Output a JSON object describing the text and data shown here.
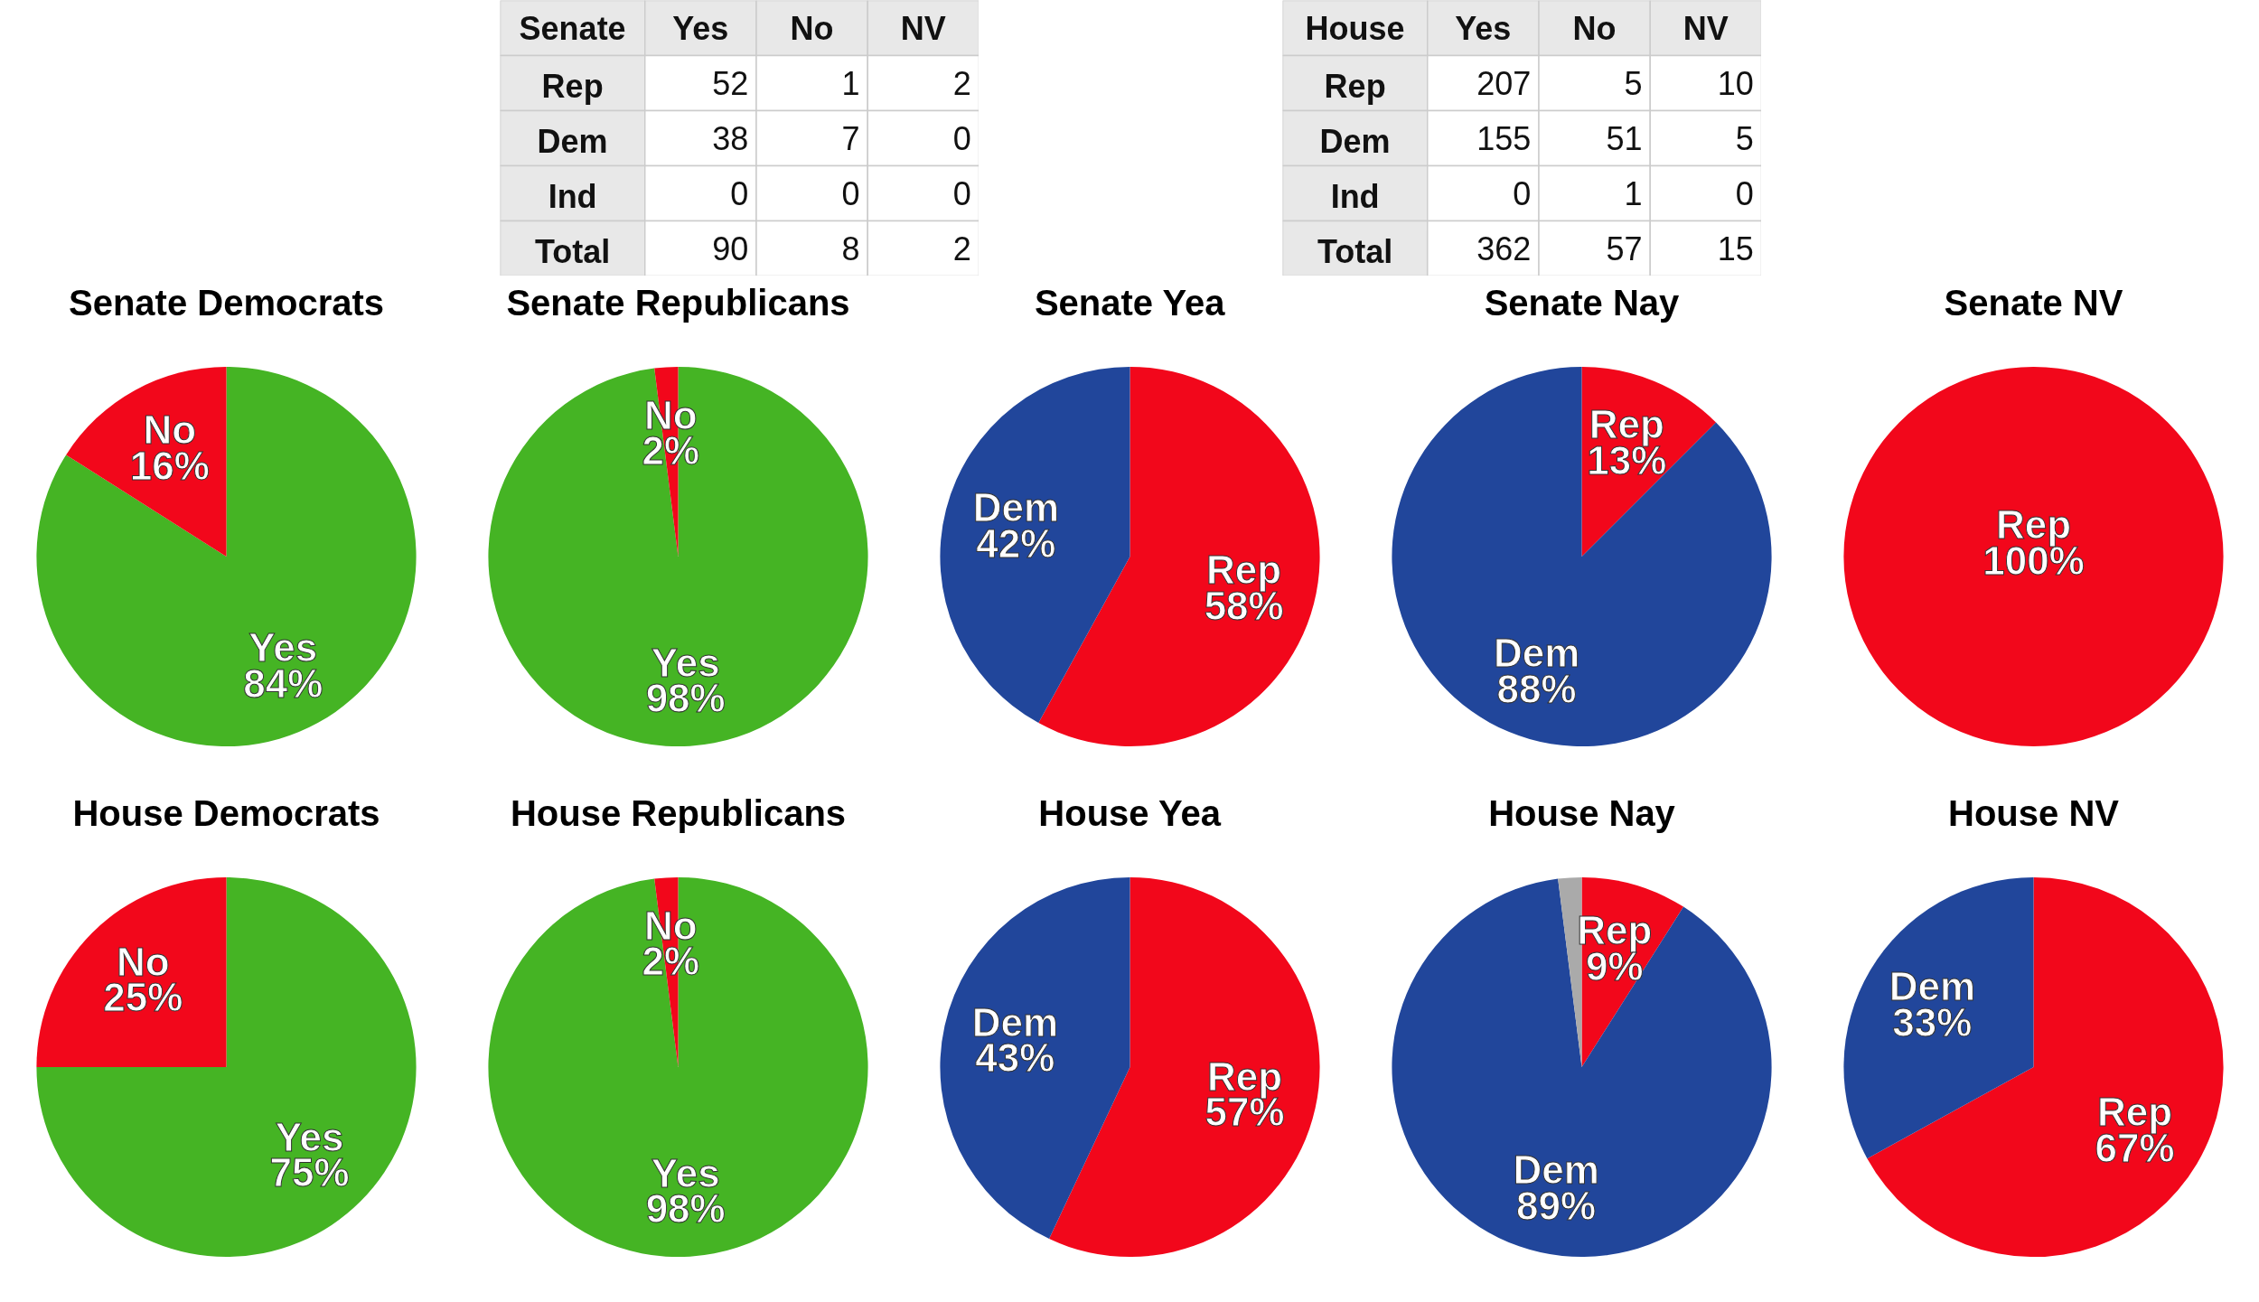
{
  "chart_data": [
    {
      "type": "other",
      "title": "Senate",
      "categories": [
        "Yes",
        "No",
        "NV"
      ],
      "y_categories": [
        "Rep",
        "Dem",
        "Ind",
        "Total"
      ],
      "annotations": [
        "52",
        "1",
        "2",
        "38",
        "7",
        "0",
        "0",
        "0",
        "0",
        "90",
        "8",
        "2"
      ]
    },
    {
      "type": "other",
      "title": "House",
      "categories": [
        "Yes",
        "No",
        "NV"
      ],
      "y_categories": [
        "Rep",
        "Dem",
        "Ind",
        "Total"
      ],
      "annotations": [
        "207",
        "5",
        "10",
        "155",
        "51",
        "5",
        "0",
        "1",
        "0",
        "362",
        "57",
        "15"
      ]
    },
    {
      "type": "pie",
      "title": "Senate Democrats",
      "categories": [
        "Yes",
        "No"
      ],
      "values": [
        84,
        16
      ],
      "value_labels": [
        "84%",
        "16%"
      ],
      "colors": [
        "#45b424",
        "#f2071b"
      ]
    },
    {
      "type": "pie",
      "title": "Senate Republicans",
      "categories": [
        "Yes",
        "No"
      ],
      "values": [
        98,
        2
      ],
      "value_labels": [
        "98%",
        "2%"
      ],
      "colors": [
        "#45b424",
        "#f2071b"
      ]
    },
    {
      "type": "pie",
      "title": "Senate Yea",
      "categories": [
        "Rep",
        "Dem"
      ],
      "values": [
        58,
        42
      ],
      "value_labels": [
        "58%",
        "42%"
      ],
      "colors": [
        "#f2071b",
        "#21469b"
      ]
    },
    {
      "type": "pie",
      "title": "Senate Nay",
      "categories": [
        "Rep",
        "Dem"
      ],
      "values": [
        12.5,
        87.5
      ],
      "value_labels": [
        "13%",
        "88%"
      ],
      "colors": [
        "#f2071b",
        "#21469b"
      ]
    },
    {
      "type": "pie",
      "title": "Senate NV",
      "categories": [
        "Rep"
      ],
      "values": [
        100
      ],
      "value_labels": [
        "100%"
      ],
      "colors": [
        "#f2071b"
      ]
    },
    {
      "type": "pie",
      "title": "House Democrats",
      "categories": [
        "Yes",
        "No"
      ],
      "values": [
        75,
        25
      ],
      "value_labels": [
        "75%",
        "25%"
      ],
      "colors": [
        "#45b424",
        "#f2071b"
      ]
    },
    {
      "type": "pie",
      "title": "House Republicans",
      "categories": [
        "Yes",
        "No"
      ],
      "values": [
        98,
        2
      ],
      "value_labels": [
        "98%",
        "2%"
      ],
      "colors": [
        "#45b424",
        "#f2071b"
      ]
    },
    {
      "type": "pie",
      "title": "House Yea",
      "categories": [
        "Rep",
        "Dem"
      ],
      "values": [
        57,
        43
      ],
      "value_labels": [
        "57%",
        "43%"
      ],
      "colors": [
        "#f2071b",
        "#21469b"
      ]
    },
    {
      "type": "pie",
      "title": "House Nay",
      "categories": [
        "Rep",
        "Dem",
        null
      ],
      "values": [
        9,
        89,
        2
      ],
      "value_labels": [
        "9%",
        "89%",
        null
      ],
      "colors": [
        "#f2071b",
        "#21469b",
        "#aaaaaa"
      ]
    },
    {
      "type": "pie",
      "title": "House NV",
      "categories": [
        "Rep",
        "Dem"
      ],
      "values": [
        67,
        33
      ],
      "value_labels": [
        "67%",
        "33%"
      ],
      "colors": [
        "#f2071b",
        "#21469b"
      ]
    }
  ]
}
